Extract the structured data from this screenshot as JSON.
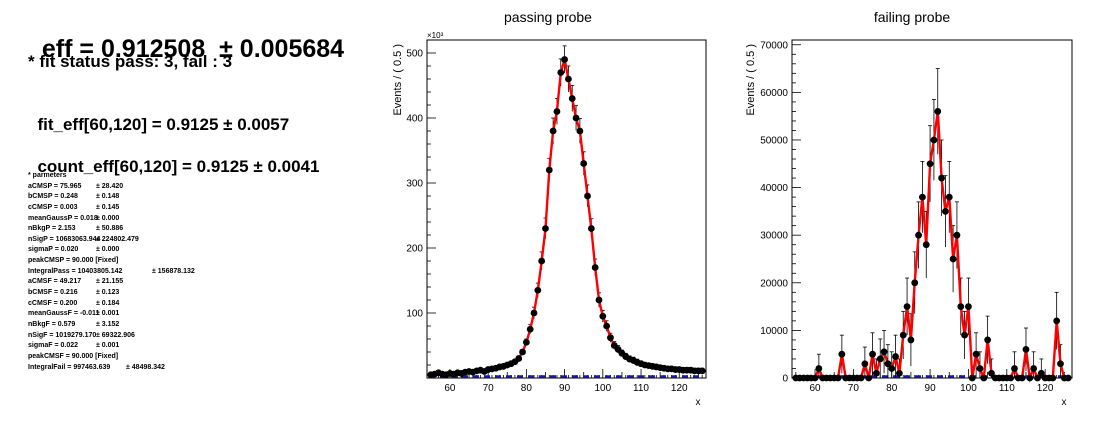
{
  "summary": {
    "eff_label": "eff = 0.912508",
    "eff_error": "± 0.005684",
    "fit_status": "* fit status pass: 3, fail : 3",
    "fit_eff_label": "fit_eff[60,120] = 0.9125",
    "fit_eff_error": "± 0.0057",
    "count_eff_label": "count_eff[60,120] = 0.9125",
    "count_eff_error": "± 0.0041"
  },
  "parameters": {
    "heading": "* parmeters",
    "rows": [
      {
        "text": "aCMSP = 75.965",
        "err": "± 28.420"
      },
      {
        "text": "bCMSP = 0.248",
        "err": "± 0.148"
      },
      {
        "text": "cCMSP = 0.003",
        "err": "± 0.145"
      },
      {
        "text": "meanGaussP = 0.018",
        "err": "± 0.000"
      },
      {
        "text": "nBkgP = 2.153",
        "err": "± 50.886"
      },
      {
        "text": "nSigP = 10683063.944",
        "err": "± 224802.479"
      },
      {
        "text": "sigmaP = 0.020",
        "err": "± 0.000"
      },
      {
        "text": "peakCMSP = 90.000 [Fixed]",
        "err": ""
      },
      {
        "text": "IntegralPass = 10403805.142",
        "err": "± 156878.132"
      },
      {
        "text": "aCMSF = 49.217",
        "err": "± 21.155"
      },
      {
        "text": "bCMSF = 0.216",
        "err": "± 0.123"
      },
      {
        "text": "cCMSF = 0.200",
        "err": "± 0.184"
      },
      {
        "text": "meanGaussF = -0.011",
        "err": "± 0.001"
      },
      {
        "text": "nBkgF = 0.579",
        "err": "± 3.152"
      },
      {
        "text": "nSigF = 1019279.170",
        "err": "± 69322.906"
      },
      {
        "text": "sigmaF = 0.022",
        "err": "± 0.001"
      },
      {
        "text": "peakCMSF = 90.000 [Fixed]",
        "err": ""
      },
      {
        "text": "IntegralFail = 997463.639",
        "err": "± 48498.342"
      }
    ]
  },
  "colors": {
    "data": "#000000",
    "fit": "#ff0000",
    "background": "#1a1aa0"
  },
  "chart_data": [
    {
      "type": "scatter",
      "title": "passing probe",
      "xlabel": "x",
      "ylabel": "Events / ( 0.5 )",
      "y_multiplier": "×10³",
      "xlim": [
        54,
        127
      ],
      "ylim": [
        0,
        520
      ],
      "x_ticks": [
        60,
        70,
        80,
        90,
        100,
        110,
        120
      ],
      "y_ticks": [
        100,
        200,
        300,
        400,
        500
      ],
      "x": [
        55,
        56,
        57,
        58,
        59,
        60,
        61,
        62,
        63,
        64,
        65,
        66,
        67,
        68,
        69,
        70,
        71,
        72,
        73,
        74,
        75,
        76,
        77,
        78,
        79,
        80,
        81,
        82,
        83,
        84,
        85,
        86,
        87,
        88,
        89,
        90,
        91,
        92,
        93,
        94,
        95,
        96,
        97,
        98,
        99,
        100,
        101,
        102,
        103,
        104,
        105,
        106,
        107,
        108,
        109,
        110,
        111,
        112,
        113,
        114,
        115,
        116,
        117,
        118,
        119,
        120,
        121,
        122,
        123,
        124,
        125,
        126
      ],
      "y": [
        5,
        6,
        8,
        6,
        5,
        7,
        6,
        8,
        7,
        9,
        10,
        9,
        11,
        12,
        10,
        13,
        14,
        15,
        17,
        18,
        20,
        22,
        25,
        30,
        40,
        55,
        75,
        100,
        135,
        180,
        230,
        320,
        380,
        410,
        470,
        490,
        460,
        430,
        400,
        380,
        330,
        280,
        230,
        170,
        120,
        95,
        80,
        62,
        50,
        44,
        38,
        33,
        29,
        27,
        24,
        22,
        20,
        19,
        18,
        17,
        16,
        15,
        14,
        14,
        13,
        13,
        12,
        12,
        12,
        11,
        11,
        11
      ],
      "err": [
        2,
        2,
        2,
        2,
        2,
        2,
        2,
        2,
        2,
        2,
        2,
        2,
        2,
        2,
        2,
        3,
        3,
        3,
        3,
        3,
        3,
        3,
        3,
        4,
        4,
        5,
        7,
        9,
        11,
        14,
        16,
        18,
        20,
        20,
        21,
        21,
        20,
        20,
        19,
        19,
        18,
        17,
        15,
        13,
        11,
        9,
        8,
        7,
        6,
        6,
        5,
        5,
        5,
        5,
        5,
        4,
        4,
        4,
        4,
        4,
        4,
        4,
        4,
        4,
        4,
        4,
        4,
        4,
        4,
        4,
        4,
        4
      ],
      "legend": "none",
      "grid": false
    },
    {
      "type": "scatter",
      "title": "failing probe",
      "xlabel": "x",
      "ylabel": "Events / ( 0.5 )",
      "xlim": [
        54,
        127
      ],
      "ylim": [
        0,
        71000
      ],
      "x_ticks": [
        60,
        70,
        80,
        90,
        100,
        110,
        120
      ],
      "y_ticks": [
        0,
        10000,
        20000,
        30000,
        40000,
        50000,
        60000,
        70000
      ],
      "x": [
        55,
        56,
        57,
        58,
        59,
        60,
        61,
        62,
        63,
        64,
        65,
        66,
        67,
        68,
        69,
        70,
        71,
        72,
        73,
        74,
        75,
        76,
        77,
        78,
        79,
        80,
        81,
        82,
        83,
        84,
        85,
        86,
        87,
        88,
        89,
        90,
        91,
        92,
        93,
        94,
        95,
        96,
        97,
        98,
        99,
        100,
        101,
        102,
        103,
        104,
        105,
        106,
        107,
        108,
        109,
        110,
        111,
        112,
        113,
        114,
        115,
        116,
        117,
        118,
        119,
        120,
        121,
        122,
        123,
        124,
        125,
        126
      ],
      "y": [
        0,
        0,
        0,
        0,
        0,
        0,
        2000,
        0,
        0,
        0,
        0,
        0,
        5000,
        0,
        0,
        0,
        0,
        0,
        3000,
        0,
        5000,
        1000,
        4000,
        5500,
        3000,
        2000,
        4500,
        1000,
        9000,
        15000,
        8000,
        20000,
        30000,
        38000,
        28000,
        45000,
        50000,
        56000,
        42000,
        35000,
        38000,
        25000,
        30000,
        15000,
        9000,
        15000,
        0,
        5000,
        2000,
        0,
        8000,
        1000,
        0,
        0,
        0,
        0,
        0,
        2000,
        0,
        0,
        6000,
        0,
        2000,
        0,
        1000,
        0,
        0,
        0,
        12000,
        3000,
        0,
        0
      ],
      "err": [
        0,
        0,
        0,
        0,
        0,
        0,
        3000,
        0,
        0,
        0,
        0,
        0,
        4000,
        0,
        0,
        0,
        0,
        0,
        3500,
        0,
        4500,
        3000,
        4200,
        4500,
        4000,
        3500,
        4500,
        3000,
        5000,
        6000,
        5500,
        6500,
        7000,
        7500,
        7000,
        8000,
        8500,
        9000,
        8000,
        7500,
        7500,
        7000,
        7000,
        6000,
        5000,
        6000,
        0,
        4500,
        3500,
        0,
        5000,
        3000,
        0,
        0,
        0,
        0,
        0,
        3500,
        0,
        0,
        4500,
        0,
        3500,
        0,
        3000,
        0,
        0,
        0,
        6000,
        4000,
        0,
        0
      ],
      "legend": "none",
      "grid": false
    }
  ]
}
